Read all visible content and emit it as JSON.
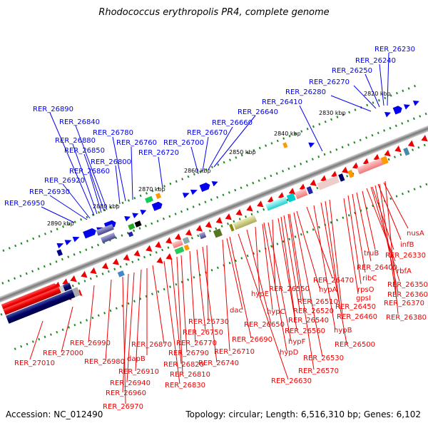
{
  "title": "Rhodococcus erythropolis PR4, complete genome",
  "accession_label": "Accession: NC_012490",
  "topology_label": "Topology: circular; Length: 6,516,310 bp; Genes: 6,102",
  "colors": {
    "forward": "#0000ee",
    "reverse": "#ee0000",
    "backbone": "#888888",
    "tick_dot": "#228822"
  },
  "scale_labels": [
    "2820 kbp",
    "2830 kbp",
    "2840 kbp",
    "2850 kbp",
    "2860 kbp",
    "2870 kbp",
    "2880 kbp",
    "2890 kbp"
  ],
  "forward_labels": [
    "RER_26230",
    "RER_26240",
    "RER_26250",
    "RER_26270",
    "RER_26280",
    "RER_26410",
    "RER_26640",
    "RER_26660",
    "RER_26670",
    "RER_26700",
    "RER_26720",
    "RER_26760",
    "RER_26780",
    "RER_26800",
    "RER_26840",
    "RER_26850",
    "RER_26860",
    "RER_26880",
    "RER_26890",
    "RER_26920",
    "RER_26930",
    "RER_26950"
  ],
  "reverse_labels": [
    "nusA",
    "infB",
    "RER_26330",
    "truB",
    "rbfA",
    "RER_26400",
    "ribC",
    "RER_26350",
    "rpsO",
    "RER_26360",
    "gpsI",
    "RER_26370",
    "RER_26380",
    "RER_26470",
    "RER_26450",
    "hypA",
    "RER_26460",
    "RER_26510",
    "RER_26550",
    "hypE",
    "RER_26520",
    "hypC",
    "RER_26540",
    "hypB",
    "RER_26500",
    "RER_26560",
    "hypF",
    "RER_26530",
    "RER_26570",
    "hypD",
    "RER_26630",
    "RER_26650",
    "RER_26690",
    "dac",
    "RER_26710",
    "RER_26730",
    "RER_26740",
    "RER_26750",
    "RER_26770",
    "RER_26790",
    "RER_26820",
    "RER_26810",
    "RER_26830",
    "RER_26870",
    "dapB",
    "RER_26910",
    "RER_26940",
    "RER_26960",
    "RER_26970",
    "RER_26980",
    "RER_26990",
    "RER_27000",
    "RER_27010"
  ]
}
